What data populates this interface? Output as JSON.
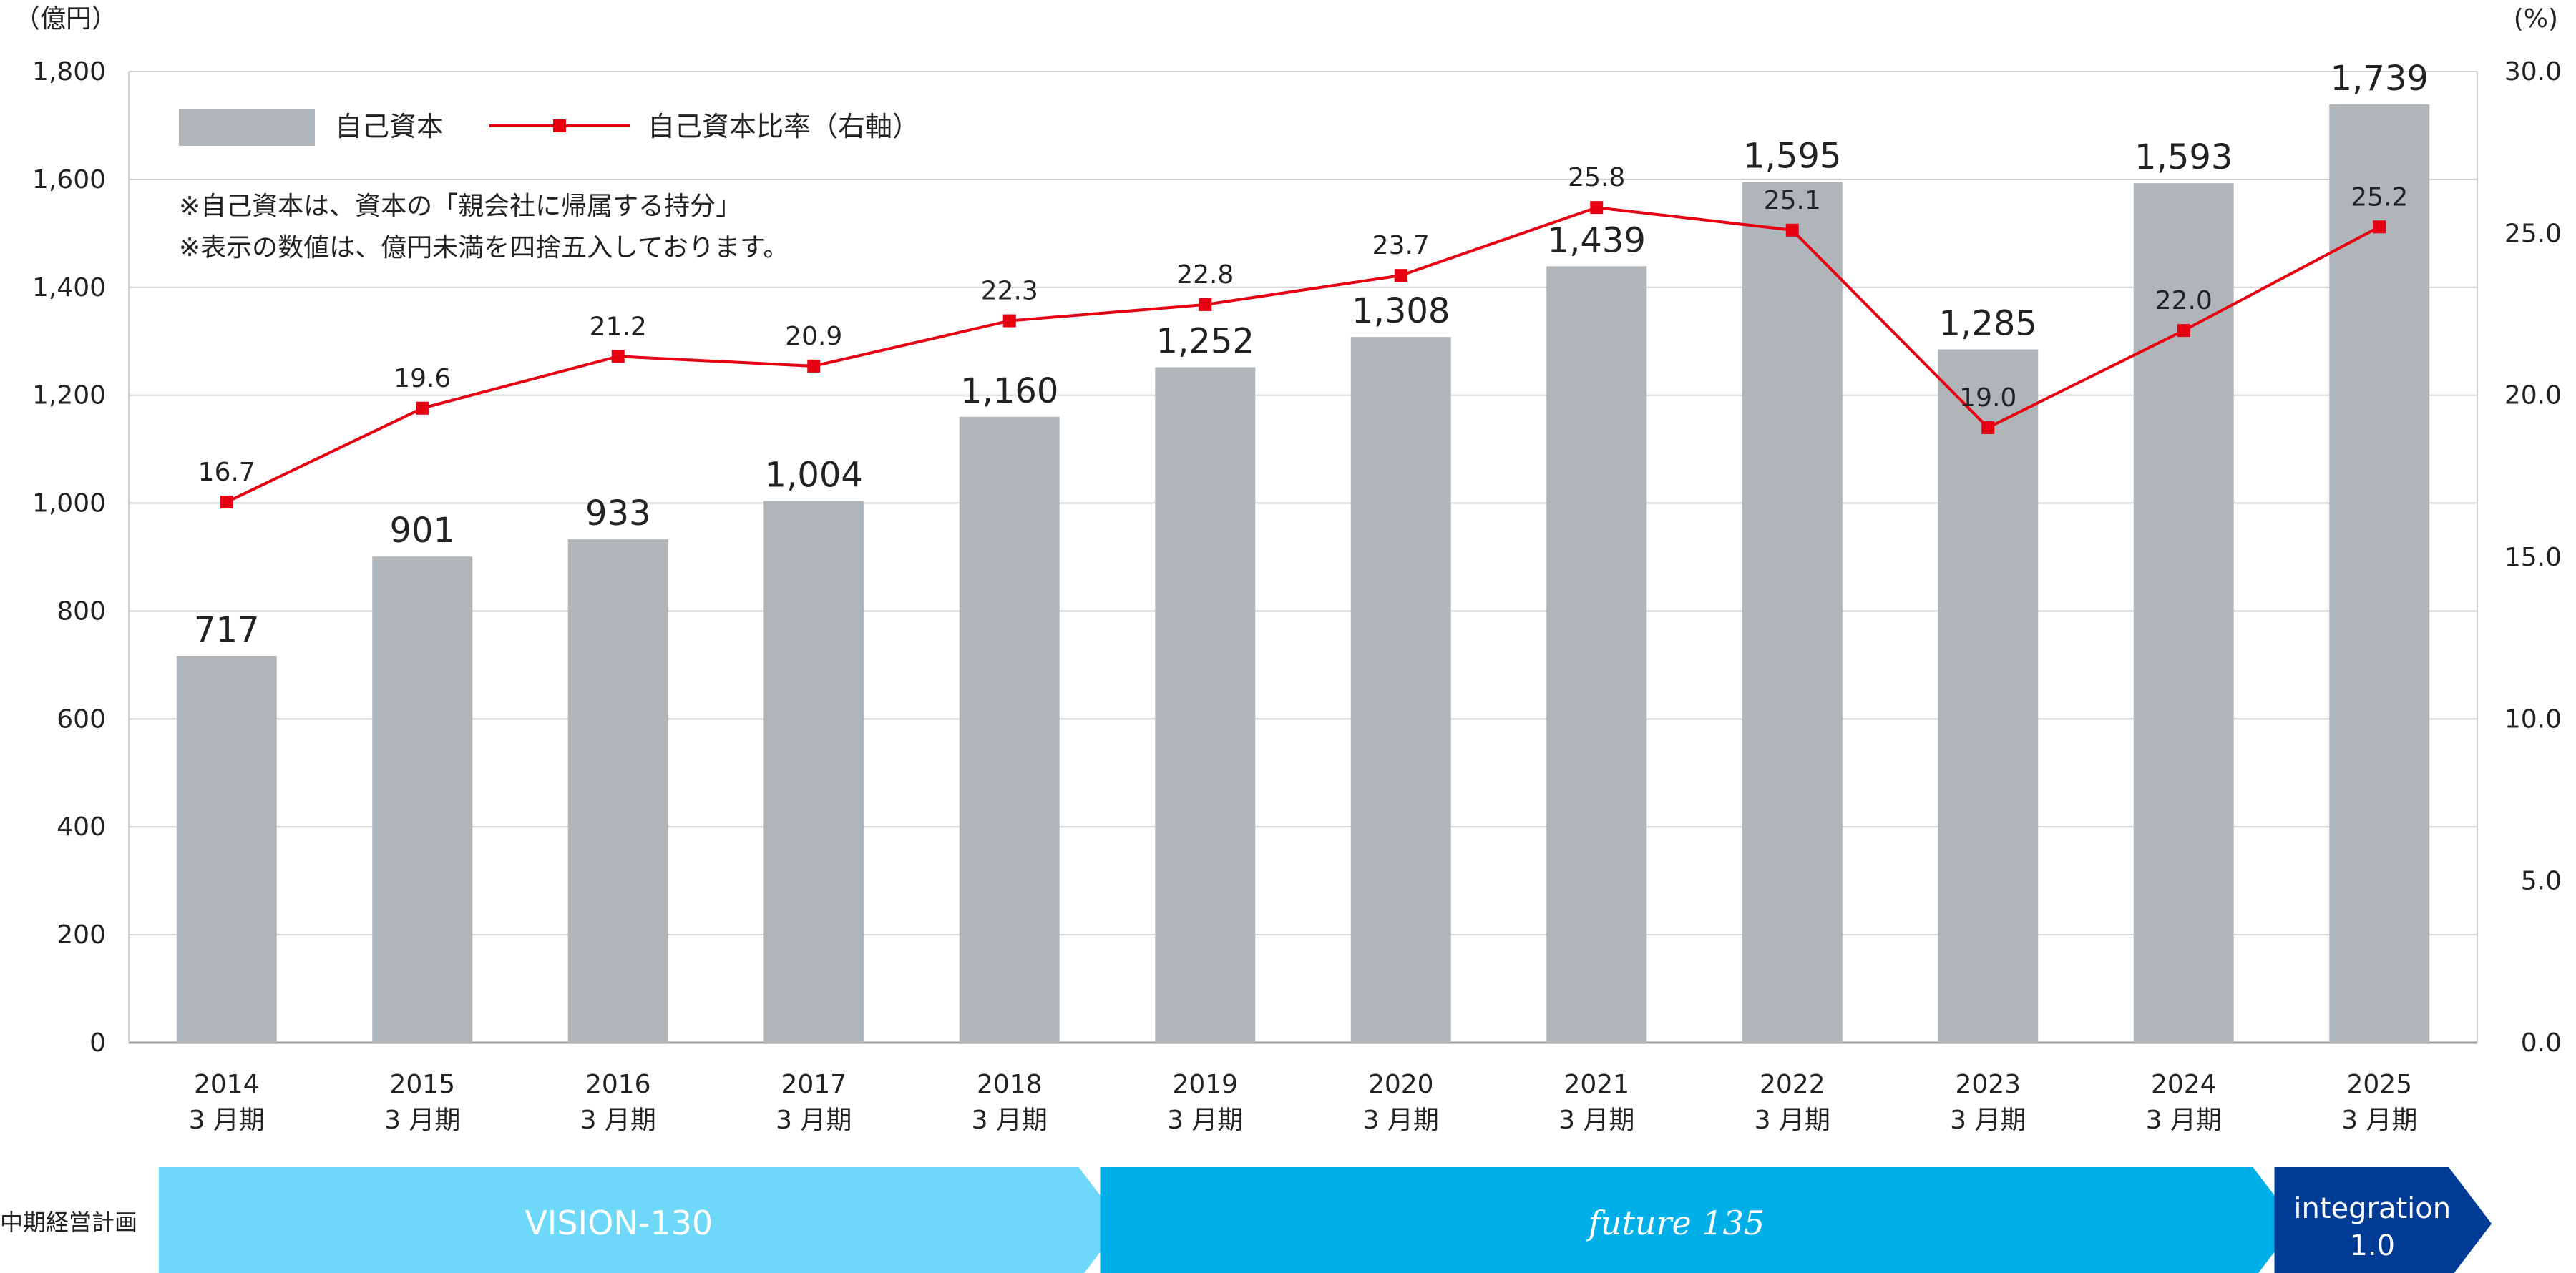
{
  "chart_data": {
    "type": "bar",
    "left_axis_unit": "（億円）",
    "right_axis_unit": "(%)",
    "categories": [
      [
        "2014",
        "3 月期"
      ],
      [
        "2015",
        "3 月期"
      ],
      [
        "2016",
        "3 月期"
      ],
      [
        "2017",
        "3 月期"
      ],
      [
        "2018",
        "3 月期"
      ],
      [
        "2019",
        "3 月期"
      ],
      [
        "2020",
        "3 月期"
      ],
      [
        "2021",
        "3 月期"
      ],
      [
        "2022",
        "3 月期"
      ],
      [
        "2023",
        "3 月期"
      ],
      [
        "2024",
        "3 月期"
      ],
      [
        "2025",
        "3 月期"
      ]
    ],
    "series": [
      {
        "name": "自己資本",
        "type": "bar",
        "axis": "left",
        "color": "#b0b5b9",
        "values": [
          717,
          901,
          933,
          1004,
          1160,
          1252,
          1308,
          1439,
          1595,
          1285,
          1593,
          1739
        ],
        "labels": [
          "717",
          "901",
          "933",
          "1,004",
          "1,160",
          "1,252",
          "1,308",
          "1,439",
          "1,595",
          "1,285",
          "1,593",
          "1,739"
        ]
      },
      {
        "name": "自己資本比率（右軸）",
        "type": "line",
        "axis": "right",
        "color": "#e60012",
        "values": [
          16.7,
          19.6,
          21.2,
          20.9,
          22.3,
          22.8,
          23.7,
          25.8,
          25.1,
          19.0,
          22.0,
          25.2
        ],
        "labels": [
          "16.7",
          "19.6",
          "21.2",
          "20.9",
          "22.3",
          "22.8",
          "23.7",
          "25.8",
          "25.1",
          "19.0",
          "22.0",
          "25.2"
        ]
      }
    ],
    "ylim": [
      0,
      1800
    ],
    "y_ticks": [
      "0",
      "200",
      "400",
      "600",
      "800",
      "1,000",
      "1,200",
      "1,400",
      "1,600",
      "1,800"
    ],
    "y2lim": [
      0,
      30
    ],
    "y2_ticks": [
      "0.0",
      "5.0",
      "10.0",
      "15.0",
      "20.0",
      "25.0",
      "30.0"
    ],
    "grid": true,
    "legend": "top-left",
    "notes": [
      "※自己資本は、資本の「親会社に帰属する持分」",
      "※表示の数値は、億円未満を四捨五入しております。"
    ]
  },
  "plans": {
    "label": "中期経営計画",
    "items": [
      {
        "name": "VISION-130",
        "start": 0,
        "end": 4,
        "color": "#6dd8f8"
      },
      {
        "name": "future 135",
        "start": 5,
        "end": 10,
        "color": "#00aee8"
      },
      {
        "name_lines": [
          "integration",
          "1.0"
        ],
        "start": 11,
        "end": 11,
        "color": "#003c96"
      }
    ]
  }
}
